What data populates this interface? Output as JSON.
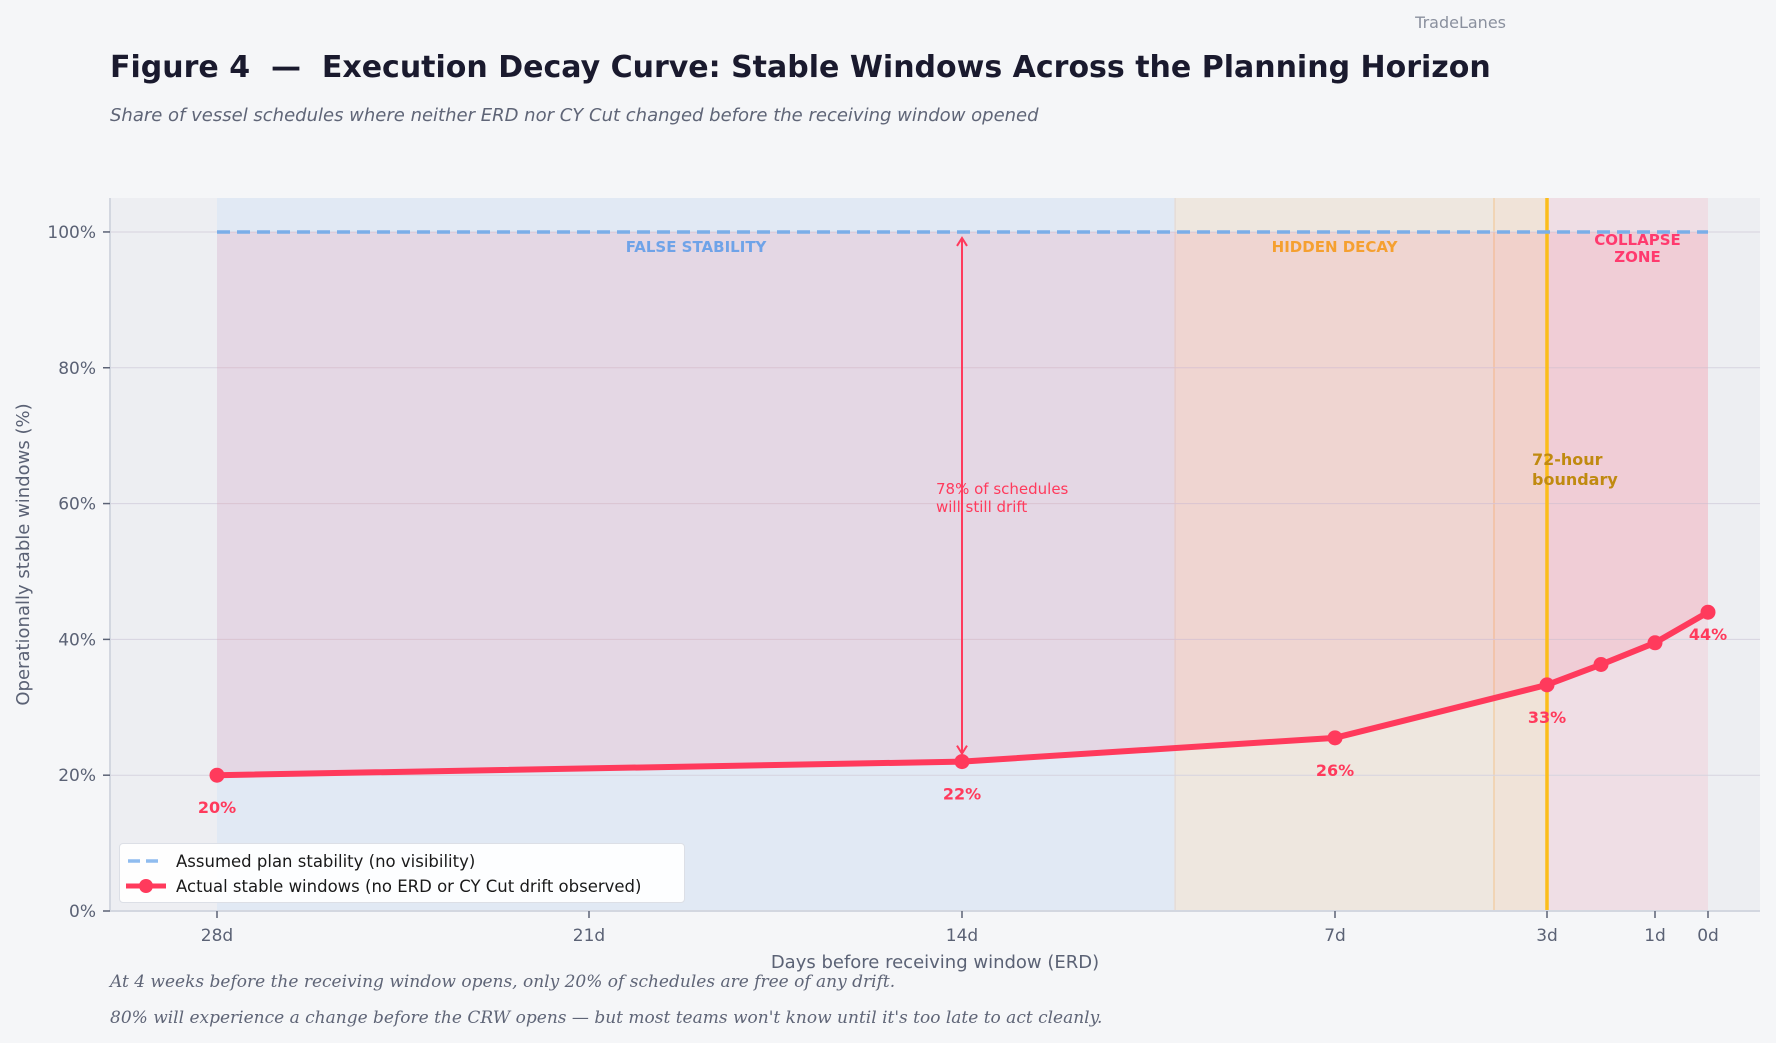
{
  "brand": "TradeLanes",
  "header": {
    "title": "Figure 4  —  Execution Decay Curve: Stable Windows Across the Planning Horizon",
    "subtitle": "Share of vessel schedules where neither ERD nor CY Cut changed before the receiving window opened"
  },
  "footnotes": [
    "At 4 weeks before the receiving window opens, only 20% of schedules are free of any drift.",
    "80% will experience a change before the CRW opens — but most teams won't know until it's too late to act cleanly."
  ],
  "chart_data": {
    "type": "line",
    "title": "Execution Decay Curve: Stable Windows Across the Planning Horizon",
    "xlabel": "Days before receiving window (ERD)",
    "ylabel": "Operationally stable windows (%)",
    "x_direction": "reversed (days remaining decreasing to the right)",
    "xlim": [
      30.5,
      -1
    ],
    "ylim": [
      0,
      105
    ],
    "x_ticks": [
      {
        "value": 28,
        "label": "28d"
      },
      {
        "value": 21,
        "label": "21d"
      },
      {
        "value": 14,
        "label": "14d"
      },
      {
        "value": 7,
        "label": "7d"
      },
      {
        "value": 3,
        "label": "3d"
      },
      {
        "value": 1,
        "label": "1d"
      },
      {
        "value": 0,
        "label": "0d"
      }
    ],
    "y_ticks": [
      {
        "value": 0,
        "label": "0%"
      },
      {
        "value": 20,
        "label": "20%"
      },
      {
        "value": 40,
        "label": "40%"
      },
      {
        "value": 60,
        "label": "60%"
      },
      {
        "value": 80,
        "label": "80%"
      },
      {
        "value": 100,
        "label": "100%"
      }
    ],
    "grid": "horizontal",
    "series": [
      {
        "name": "Assumed plan stability (no visibility)",
        "style": "dashed",
        "color": "#7aaee8",
        "x": [
          28,
          0
        ],
        "values": [
          100,
          100
        ]
      },
      {
        "name": "Actual stable windows (no ERD or CY Cut drift observed)",
        "style": "solid-with-markers",
        "color": "#ff3a5c",
        "x": [
          28,
          14,
          7,
          3,
          2,
          1,
          0
        ],
        "values": [
          20,
          22,
          25.5,
          33.3,
          36.3,
          39.5,
          44
        ]
      }
    ],
    "point_labels": [
      {
        "x": 28,
        "label": "20%"
      },
      {
        "x": 14,
        "label": "22%"
      },
      {
        "x": 7,
        "label": "26%"
      },
      {
        "x": 3,
        "label": "33%"
      },
      {
        "x": 0,
        "label": "44%"
      }
    ],
    "gap_fill": {
      "between": [
        "Assumed plan stability (no visibility)",
        "Actual stable windows (no ERD or CY Cut drift observed)"
      ],
      "color": "#ff3a5c"
    },
    "zones": [
      {
        "label": "FALSE STABILITY",
        "from": 28,
        "to": 10,
        "color": "#6fa3e8"
      },
      {
        "label": "HIDDEN DECAY",
        "from": 10,
        "to": 4,
        "color": "#f5a030"
      },
      {
        "label": "",
        "from": 4,
        "to": 3,
        "color": "#f5a030"
      },
      {
        "label": "COLLAPSE\nZONE",
        "from": 3,
        "to": 0,
        "color": "#ff3a6e"
      }
    ],
    "vertical_lines": [
      {
        "x": 3,
        "label": "72-hour\nboundary",
        "color": "#fbbd1a"
      }
    ],
    "annotations": [
      {
        "type": "double-arrow",
        "x": 14,
        "y_from": 22,
        "y_to": 100,
        "text": "78% of schedules\nwill still drift"
      }
    ],
    "legend": {
      "placement": "bottom-left",
      "entries": [
        "Assumed plan stability (no visibility)",
        "Actual stable windows (no ERD or CY Cut drift observed)"
      ]
    }
  }
}
